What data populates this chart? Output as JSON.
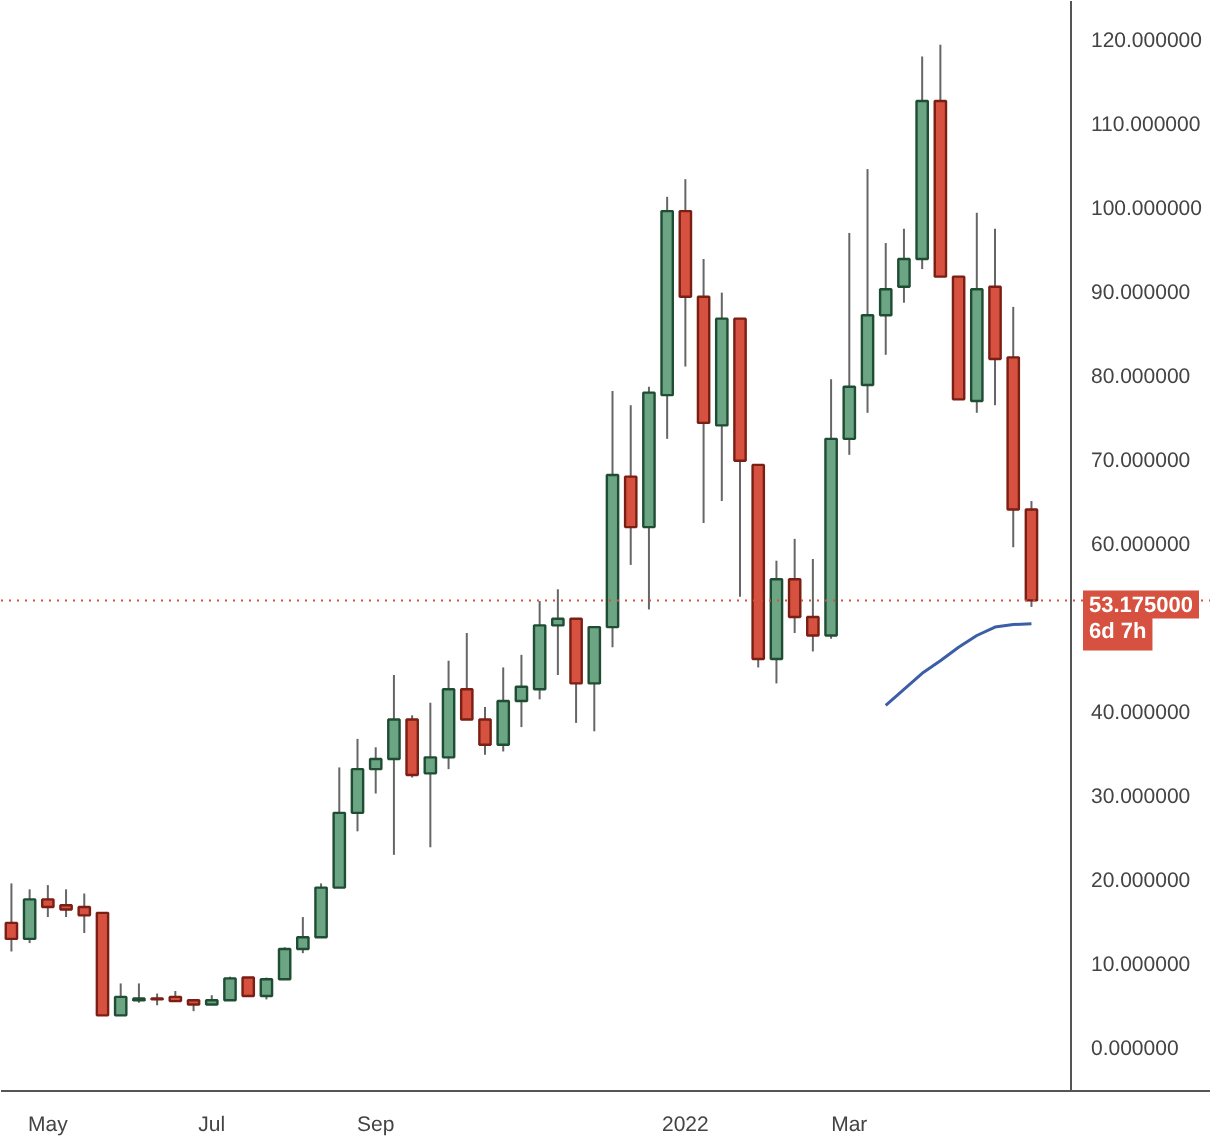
{
  "chart_data": {
    "type": "candlestick",
    "x": [
      "2021-04-19",
      "2021-04-26",
      "2021-05-03",
      "2021-05-10",
      "2021-05-17",
      "2021-05-24",
      "2021-05-31",
      "2021-06-07",
      "2021-06-14",
      "2021-06-21",
      "2021-06-28",
      "2021-07-05",
      "2021-07-12",
      "2021-07-19",
      "2021-07-26",
      "2021-08-02",
      "2021-08-09",
      "2021-08-16",
      "2021-08-23",
      "2021-08-30",
      "2021-09-06",
      "2021-09-13",
      "2021-09-20",
      "2021-09-27",
      "2021-10-04",
      "2021-10-11",
      "2021-10-18",
      "2021-10-25",
      "2021-11-01",
      "2021-11-08",
      "2021-11-15",
      "2021-11-22",
      "2021-11-29",
      "2021-12-06",
      "2021-12-13",
      "2021-12-20",
      "2021-12-27",
      "2022-01-03",
      "2022-01-10",
      "2022-01-17",
      "2022-01-24",
      "2022-01-31",
      "2022-02-07",
      "2022-02-14",
      "2022-02-21",
      "2022-02-28",
      "2022-03-07",
      "2022-03-14",
      "2022-03-21",
      "2022-03-28",
      "2022-04-04",
      "2022-04-11",
      "2022-04-18",
      "2022-04-25",
      "2022-05-02",
      "2022-05-09",
      "2022-05-16"
    ],
    "ohlc": [
      [
        14.8,
        19.5,
        11.4,
        12.9
      ],
      [
        12.9,
        18.8,
        12.4,
        17.6
      ],
      [
        17.6,
        19.3,
        15.5,
        16.7
      ],
      [
        16.9,
        18.8,
        15.5,
        16.4
      ],
      [
        16.7,
        18.3,
        13.6,
        15.7
      ],
      [
        16.0,
        16.0,
        3.8,
        3.8
      ],
      [
        3.8,
        7.6,
        3.8,
        6.0
      ],
      [
        5.6,
        7.6,
        5.3,
        5.8
      ],
      [
        5.8,
        6.4,
        5.0,
        5.7
      ],
      [
        6.0,
        6.7,
        5.4,
        5.5
      ],
      [
        5.6,
        5.6,
        4.3,
        5.1
      ],
      [
        5.1,
        6.2,
        5.1,
        5.6
      ],
      [
        5.6,
        8.4,
        5.6,
        8.2
      ],
      [
        8.3,
        8.3,
        6.1,
        6.1
      ],
      [
        6.1,
        8.3,
        5.7,
        8.1
      ],
      [
        8.1,
        11.9,
        8.1,
        11.7
      ],
      [
        11.7,
        15.5,
        11.2,
        13.1
      ],
      [
        13.1,
        19.5,
        13.1,
        19.0
      ],
      [
        19.0,
        33.3,
        19.0,
        27.9
      ],
      [
        27.9,
        36.7,
        25.7,
        33.1
      ],
      [
        33.1,
        35.7,
        30.2,
        34.3
      ],
      [
        34.3,
        44.3,
        22.9,
        39.0
      ],
      [
        39.0,
        39.5,
        32.1,
        32.4
      ],
      [
        32.6,
        41.0,
        23.8,
        34.5
      ],
      [
        34.5,
        46.0,
        33.1,
        42.6
      ],
      [
        42.6,
        49.3,
        39.0,
        39.0
      ],
      [
        39.0,
        40.5,
        34.8,
        36.0
      ],
      [
        36.0,
        45.2,
        35.2,
        41.2
      ],
      [
        41.2,
        46.7,
        38.1,
        42.9
      ],
      [
        42.6,
        53.1,
        41.4,
        50.2
      ],
      [
        50.2,
        54.5,
        44.3,
        51.0
      ],
      [
        51.0,
        51.0,
        38.6,
        43.3
      ],
      [
        43.3,
        50.0,
        37.6,
        50.0
      ],
      [
        50.0,
        78.1,
        47.6,
        68.1
      ],
      [
        67.9,
        76.4,
        57.4,
        61.9
      ],
      [
        61.9,
        78.6,
        52.1,
        77.9
      ],
      [
        77.6,
        101.2,
        72.4,
        99.5
      ],
      [
        99.5,
        103.3,
        81.0,
        89.3
      ],
      [
        89.3,
        93.8,
        62.4,
        74.3
      ],
      [
        74.0,
        89.8,
        65.0,
        86.7
      ],
      [
        86.7,
        86.7,
        53.6,
        69.8
      ],
      [
        69.3,
        69.3,
        45.2,
        46.2
      ],
      [
        46.2,
        57.9,
        43.3,
        55.7
      ],
      [
        55.7,
        60.5,
        49.3,
        51.2
      ],
      [
        51.2,
        58.1,
        47.1,
        49.0
      ],
      [
        49.0,
        79.5,
        48.6,
        72.4
      ],
      [
        72.4,
        96.9,
        70.5,
        78.6
      ],
      [
        78.8,
        104.5,
        75.5,
        87.1
      ],
      [
        87.1,
        95.7,
        82.4,
        90.2
      ],
      [
        90.5,
        97.4,
        88.6,
        93.8
      ],
      [
        93.8,
        117.9,
        92.6,
        112.6
      ],
      [
        112.6,
        119.3,
        91.7,
        91.7
      ],
      [
        91.7,
        91.7,
        77.1,
        77.1
      ],
      [
        76.9,
        99.3,
        75.5,
        90.2
      ],
      [
        90.5,
        97.4,
        76.4,
        81.9
      ],
      [
        82.1,
        88.1,
        59.5,
        64.0
      ],
      [
        64.0,
        65.0,
        52.4,
        53.175
      ]
    ],
    "colors": [
      "#d6513f",
      "#6ca583",
      "#d6513f",
      "#d6513f",
      "#d6513f",
      "#d6513f",
      "#6ca583",
      "#6ca583",
      "#d6513f",
      "#d6513f",
      "#d6513f",
      "#6ca583",
      "#6ca583",
      "#d6513f",
      "#6ca583",
      "#6ca583",
      "#6ca583",
      "#6ca583",
      "#6ca583",
      "#6ca583",
      "#6ca583",
      "#6ca583",
      "#d6513f",
      "#6ca583",
      "#6ca583",
      "#d6513f",
      "#d6513f",
      "#6ca583",
      "#6ca583",
      "#6ca583",
      "#6ca583",
      "#d6513f",
      "#6ca583",
      "#6ca583",
      "#d6513f",
      "#6ca583",
      "#6ca583",
      "#d6513f",
      "#d6513f",
      "#6ca583",
      "#d6513f",
      "#d6513f",
      "#6ca583",
      "#d6513f",
      "#d6513f",
      "#6ca583",
      "#6ca583",
      "#6ca583",
      "#6ca583",
      "#6ca583",
      "#6ca583",
      "#d6513f",
      "#d6513f",
      "#6ca583",
      "#d6513f",
      "#d6513f",
      "#d6513f"
    ],
    "series": [
      {
        "type": "line",
        "color": "#3c5ea6",
        "x": [
          "2022-03-21",
          "2022-03-28",
          "2022-04-04",
          "2022-04-11",
          "2022-04-18",
          "2022-04-25",
          "2022-05-02",
          "2022-05-09",
          "2022-05-16"
        ],
        "values": [
          40.7,
          42.6,
          44.5,
          46.0,
          47.6,
          49.0,
          50.0,
          50.3,
          50.4
        ]
      }
    ],
    "xlim": [
      "2021-04-15",
      "2022-07-24"
    ],
    "xticks": [
      {
        "value": "2021-05-03",
        "label": "May"
      },
      {
        "value": "2021-07-05",
        "label": "Jul"
      },
      {
        "value": "2021-09-06",
        "label": "Sep"
      },
      {
        "value": "2022-01-03",
        "label": "2022"
      },
      {
        "value": "2022-03-07",
        "label": "Mar"
      }
    ],
    "ylim": [
      -5.2,
      124.5
    ],
    "yticks": [
      {
        "value": 0,
        "label": "0.000000"
      },
      {
        "value": 10,
        "label": "10.000000"
      },
      {
        "value": 20,
        "label": "20.000000"
      },
      {
        "value": 30,
        "label": "30.000000"
      },
      {
        "value": 40,
        "label": "40.000000"
      },
      {
        "value": 60,
        "label": "60.000000"
      },
      {
        "value": 70,
        "label": "70.000000"
      },
      {
        "value": 80,
        "label": "80.000000"
      },
      {
        "value": 90,
        "label": "90.000000"
      },
      {
        "value": 100,
        "label": "100.000000"
      },
      {
        "value": 110,
        "label": "110.000000"
      },
      {
        "value": 120,
        "label": "120.000000"
      }
    ],
    "ref_lines": [
      {
        "axis": "y",
        "value": 53.175,
        "label": "53.175000",
        "color": "#d6513f",
        "line_style": "dotted"
      }
    ],
    "annotations": [
      "6d 7h"
    ],
    "grid": false
  }
}
